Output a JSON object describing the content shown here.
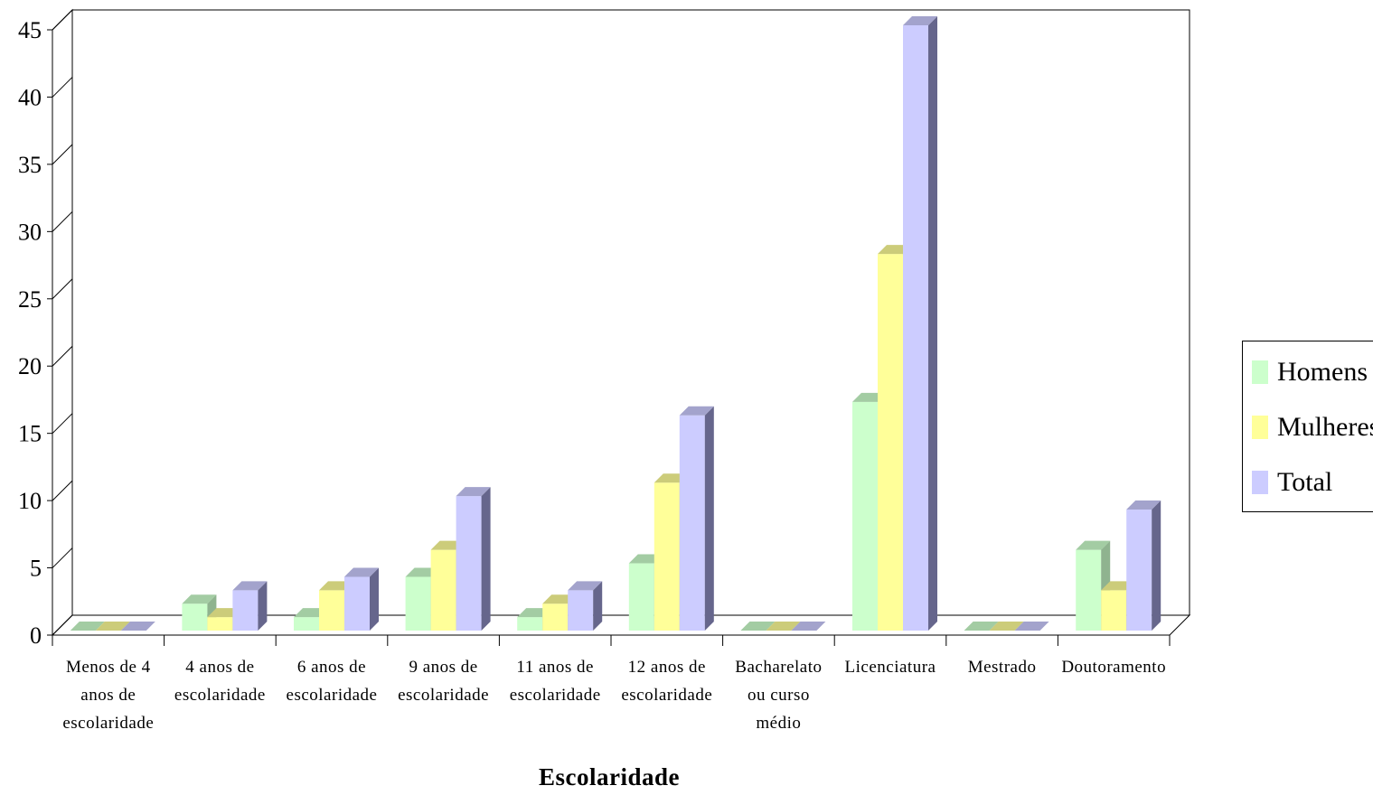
{
  "chart_data": {
    "type": "bar",
    "xlabel": "Escolaridade",
    "ylabel": "",
    "ylim": [
      0,
      45
    ],
    "yticks": [
      0,
      5,
      10,
      15,
      20,
      25,
      30,
      35,
      40,
      45
    ],
    "grid": false,
    "legend_position": "right",
    "categories": [
      [
        "Menos de 4",
        "anos de",
        "escolaridade"
      ],
      [
        "4 anos de",
        "escolaridade"
      ],
      [
        "6 anos de",
        "escolaridade"
      ],
      [
        "9 anos de",
        "escolaridade"
      ],
      [
        "11 anos de",
        "escolaridade"
      ],
      [
        "12 anos de",
        "escolaridade"
      ],
      [
        "Bacharelato",
        "ou curso",
        "médio"
      ],
      [
        "Licenciatura"
      ],
      [
        "Mestrado"
      ],
      [
        "Doutoramento"
      ]
    ],
    "series": [
      {
        "name": "Homens",
        "color": "#ccffcc",
        "side": "#8fb38f",
        "top": "#a3cca3",
        "values": [
          0,
          2,
          1,
          4,
          1,
          5,
          0,
          17,
          0,
          6
        ]
      },
      {
        "name": "Mulheres",
        "color": "#ffff99",
        "side": "#b3b36b",
        "top": "#cccc7a",
        "values": [
          0,
          1,
          3,
          6,
          2,
          11,
          0,
          28,
          0,
          3
        ]
      },
      {
        "name": "Total",
        "color": "#ccccff",
        "side": "#66668c",
        "top": "#a3a3cc",
        "values": [
          0,
          3,
          4,
          10,
          3,
          16,
          0,
          45,
          0,
          9
        ]
      }
    ]
  }
}
